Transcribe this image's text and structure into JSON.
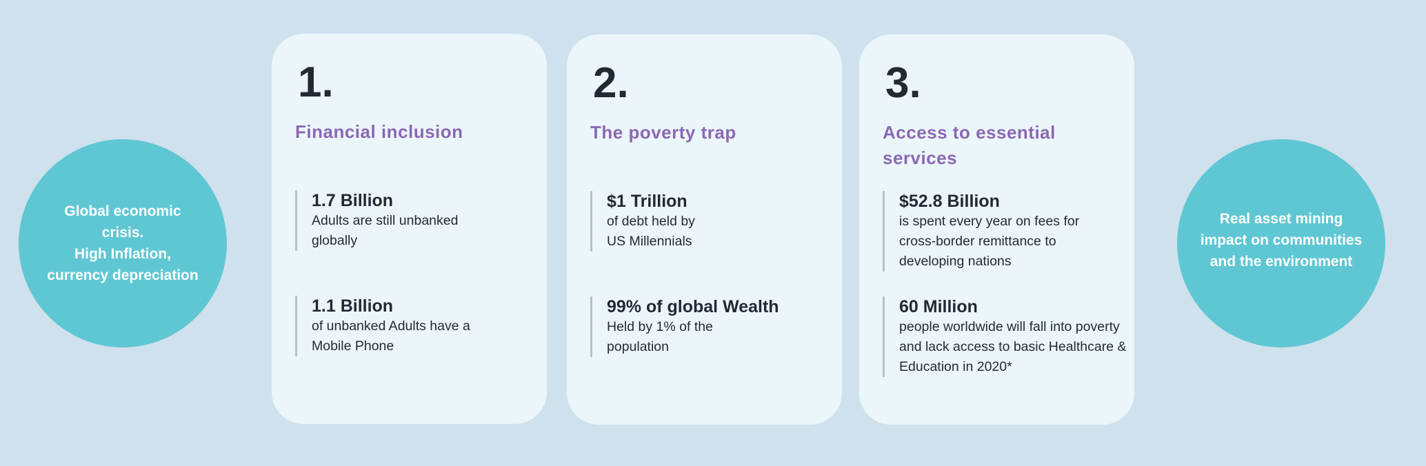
{
  "left_circle": {
    "text": "Global economic crisis.\nHigh Inflation, currency depreciation"
  },
  "right_circle": {
    "text": "Real asset  mining impact on communities and the environment"
  },
  "cards": [
    {
      "number": "1.",
      "title": "Financial inclusion",
      "stats": [
        {
          "heading": "1.7 Billion",
          "body": "Adults are still unbanked globally"
        },
        {
          "heading": "1.1 Billion",
          "body": "of unbanked Adults have a Mobile Phone"
        }
      ]
    },
    {
      "number": "2.",
      "title": "The poverty trap",
      "stats": [
        {
          "heading": "$1 Trillion",
          "body": "of debt held by US Millennials"
        },
        {
          "heading": "99% of global Wealth",
          "body": "Held by 1% of the population"
        }
      ]
    },
    {
      "number": "3.",
      "title": "Access to essential services",
      "stats": [
        {
          "heading": "$52.8 Billion",
          "body": "is spent every year on fees for cross-border remittance to developing nations"
        },
        {
          "heading": "60 Million",
          "body": "people worldwide will fall into poverty and lack access to basic Healthcare & Education in 2020*"
        }
      ]
    }
  ],
  "colors": {
    "background": "#cfe1ec",
    "card": "#ebf6fb",
    "circle": "#5fc7d3",
    "title": "#8b68b3",
    "text": "#1f2a33"
  }
}
